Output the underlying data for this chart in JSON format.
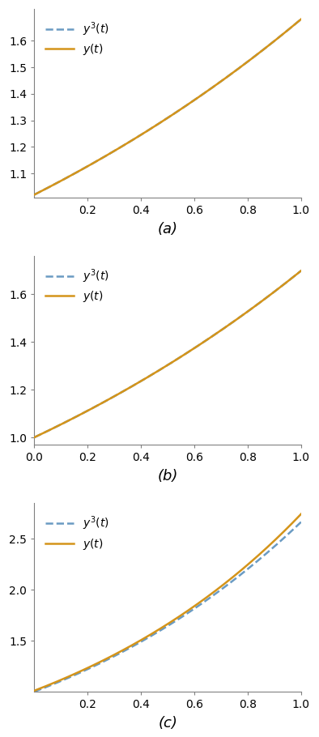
{
  "subplots": [
    {
      "label": "(a)",
      "xlim": [
        0.0,
        1.0
      ],
      "xticks": [
        0.2,
        0.4,
        0.6,
        0.8,
        1.0
      ],
      "func_y": "a_solid",
      "func_y3": "a_dashed",
      "ytick_vals": [
        1.1,
        1.2,
        1.3,
        1.4,
        1.5,
        1.6
      ],
      "ylim": [
        1.01,
        1.72
      ]
    },
    {
      "label": "(b)",
      "xlim": [
        0.0,
        1.0
      ],
      "xticks": [
        0.0,
        0.2,
        0.4,
        0.6,
        0.8,
        1.0
      ],
      "func_y": "b_solid",
      "func_y3": "b_dashed",
      "ytick_vals": [
        1.0,
        1.2,
        1.4,
        1.6
      ],
      "ylim": [
        0.97,
        1.76
      ]
    },
    {
      "label": "(c)",
      "xlim": [
        0.0,
        1.0
      ],
      "xticks": [
        0.2,
        0.4,
        0.6,
        0.8,
        1.0
      ],
      "func_y": "c_solid",
      "func_y3": "c_dashed",
      "ytick_vals": [
        1.5,
        2.0,
        2.5
      ],
      "ylim": [
        1.0,
        2.85
      ]
    }
  ],
  "line_color_solid": "#D4941A",
  "line_color_dashed": "#6A9BC3",
  "line_width": 1.8,
  "legend_label_dashed": "$y^3(t)$",
  "legend_label_solid": "$y(t)$",
  "background_color": "#ffffff",
  "font_size_tick": 10,
  "font_size_label": 13
}
